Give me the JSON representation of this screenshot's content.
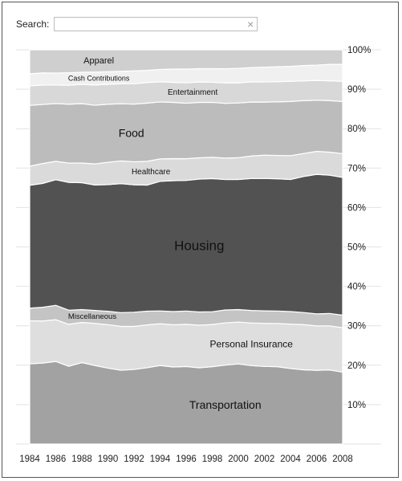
{
  "search": {
    "label": "Search:",
    "value": "",
    "placeholder": "",
    "clear_icon": "×"
  },
  "chart_data": {
    "type": "area",
    "stacked": true,
    "normalized": true,
    "x": [
      1984,
      1985,
      1986,
      1987,
      1988,
      1989,
      1990,
      1991,
      1992,
      1993,
      1994,
      1995,
      1996,
      1997,
      1998,
      1999,
      2000,
      2001,
      2002,
      2003,
      2004,
      2005,
      2006,
      2007,
      2008
    ],
    "xticks": [
      "1984",
      "1986",
      "1988",
      "1990",
      "1992",
      "1994",
      "1996",
      "1998",
      "2000",
      "2002",
      "2004",
      "2006",
      "2008"
    ],
    "yticks": [
      "10%",
      "20%",
      "30%",
      "40%",
      "50%",
      "60%",
      "70%",
      "80%",
      "90%",
      "100%"
    ],
    "ylim": [
      0,
      100
    ],
    "series": [
      {
        "name": "Transportation",
        "color": "#a2a2a2",
        "values": [
          19.8,
          20.0,
          20.6,
          19.3,
          20.3,
          19.4,
          18.7,
          18.2,
          18.4,
          18.9,
          19.6,
          19.2,
          19.3,
          19.0,
          19.3,
          19.6,
          19.9,
          19.5,
          19.3,
          19.2,
          18.7,
          18.4,
          18.3,
          18.4,
          17.8
        ]
      },
      {
        "name": "Personal Insurance",
        "color": "#dedede",
        "values": [
          10.6,
          10.4,
          10.4,
          10.4,
          10.0,
          10.4,
          10.7,
          10.8,
          10.6,
          10.6,
          10.4,
          10.5,
          10.5,
          10.6,
          10.5,
          10.5,
          10.4,
          10.6,
          10.7,
          10.7,
          11.0,
          11.2,
          11.0,
          10.9,
          11.0
        ]
      },
      {
        "name": "Miscellaneous",
        "color": "#c4c4c4",
        "values": [
          3.1,
          3.4,
          3.6,
          3.5,
          3.2,
          3.2,
          3.3,
          3.4,
          3.5,
          3.4,
          3.2,
          3.3,
          3.3,
          3.3,
          3.2,
          3.2,
          3.1,
          3.1,
          3.1,
          3.1,
          3.1,
          3.0,
          3.0,
          3.1,
          3.1
        ]
      },
      {
        "name": "Housing",
        "color": "#525252",
        "values": [
          30.3,
          30.6,
          31.3,
          31.7,
          31.6,
          31.0,
          31.2,
          31.8,
          31.4,
          31.2,
          32.3,
          32.6,
          32.5,
          33.1,
          33.2,
          32.4,
          32.3,
          32.8,
          32.9,
          32.8,
          32.7,
          33.7,
          34.6,
          34.3,
          34.1
        ]
      },
      {
        "name": "Healthcare",
        "color": "#dadada",
        "values": [
          4.7,
          4.9,
          4.6,
          4.8,
          4.9,
          5.2,
          5.5,
          5.6,
          5.7,
          5.9,
          5.6,
          5.5,
          5.4,
          5.3,
          5.3,
          5.3,
          5.4,
          5.6,
          5.8,
          5.8,
          5.9,
          5.7,
          5.7,
          5.7,
          5.9
        ]
      },
      {
        "name": "Food",
        "color": "#bcbcbc",
        "values": [
          15.0,
          14.6,
          14.4,
          14.6,
          14.8,
          14.5,
          14.3,
          14.1,
          14.2,
          14.4,
          14.2,
          14.0,
          13.8,
          13.8,
          13.7,
          13.6,
          13.6,
          13.4,
          13.2,
          13.3,
          13.4,
          13.1,
          12.7,
          12.8,
          12.9
        ]
      },
      {
        "name": "Entertainment",
        "color": "#d8d8d8",
        "values": [
          4.8,
          4.8,
          4.6,
          4.7,
          4.8,
          5.0,
          4.9,
          4.9,
          5.0,
          5.1,
          5.0,
          5.0,
          5.1,
          5.1,
          5.0,
          5.1,
          5.0,
          5.0,
          5.0,
          5.0,
          5.0,
          4.9,
          4.9,
          4.9,
          5.0
        ]
      },
      {
        "name": "Cash Contributions",
        "color": "#f0f0f0",
        "values": [
          3.0,
          3.0,
          3.0,
          3.1,
          3.0,
          3.2,
          3.1,
          3.1,
          3.2,
          3.0,
          3.1,
          3.3,
          3.4,
          3.3,
          3.4,
          3.5,
          3.6,
          3.6,
          3.7,
          3.7,
          3.7,
          3.8,
          3.8,
          4.1,
          4.2
        ]
      },
      {
        "name": "Apparel",
        "color": "#cfcfcf",
        "values": [
          5.9,
          5.7,
          5.8,
          5.7,
          5.6,
          5.5,
          5.4,
          5.3,
          5.2,
          5.1,
          4.9,
          4.8,
          4.8,
          4.7,
          4.7,
          4.7,
          4.6,
          4.4,
          4.3,
          4.2,
          4.1,
          3.9,
          3.8,
          3.6,
          3.6
        ]
      }
    ],
    "layer_labels": [
      {
        "series": "Transportation",
        "year": 1999,
        "size": 14
      },
      {
        "series": "Personal Insurance",
        "year": 2001,
        "size": 12
      },
      {
        "series": "Miscellaneous",
        "year": 1988.8,
        "size": 9.5
      },
      {
        "series": "Housing",
        "year": 1997,
        "size": 17
      },
      {
        "series": "Healthcare",
        "year": 1993.3,
        "size": 10
      },
      {
        "series": "Food",
        "year": 1991.8,
        "size": 14
      },
      {
        "series": "Entertainment",
        "year": 1996.5,
        "size": 10
      },
      {
        "series": "Cash Contributions",
        "year": 1989.3,
        "size": 9
      },
      {
        "series": "Apparel",
        "year": 1989.3,
        "size": 11
      }
    ]
  }
}
